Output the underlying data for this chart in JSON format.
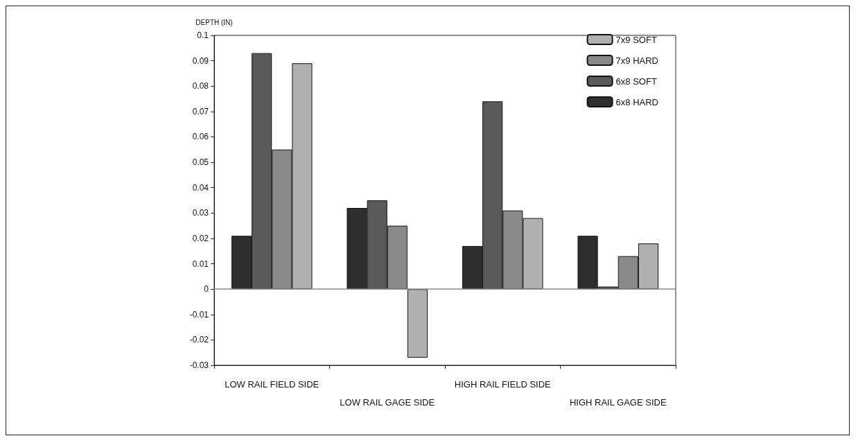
{
  "chart_data": {
    "type": "bar",
    "ylabel": "DEPTH (IN)",
    "categories": [
      "LOW RAIL FIELD SIDE",
      "LOW RAIL GAGE SIDE",
      "HIGH RAIL FIELD SIDE",
      "HIGH RAIL GAGE SIDE"
    ],
    "series": [
      {
        "name": "6x8 HARD",
        "color": "#2e2e2e",
        "values": [
          0.021,
          0.032,
          0.017,
          0.021
        ]
      },
      {
        "name": "6x8 SOFT",
        "color": "#5a5a5a",
        "values": [
          0.093,
          0.035,
          0.074,
          0.001
        ]
      },
      {
        "name": "7x9 HARD",
        "color": "#8a8a8a",
        "values": [
          0.055,
          0.025,
          0.031,
          0.013
        ]
      },
      {
        "name": "7x9 SOFT",
        "color": "#b0b0b0",
        "values": [
          0.089,
          -0.027,
          0.028,
          0.018
        ]
      }
    ],
    "ylim": [
      -0.03,
      0.1
    ],
    "yticks": [
      -0.03,
      -0.02,
      -0.01,
      0,
      0.01,
      0.02,
      0.03,
      0.04,
      0.05,
      0.06,
      0.07,
      0.08,
      0.09,
      0.1
    ],
    "ref_lines": [
      {
        "axis": "y",
        "value": 0,
        "color": "#888888"
      }
    ],
    "grid": false,
    "legend": "top right"
  }
}
